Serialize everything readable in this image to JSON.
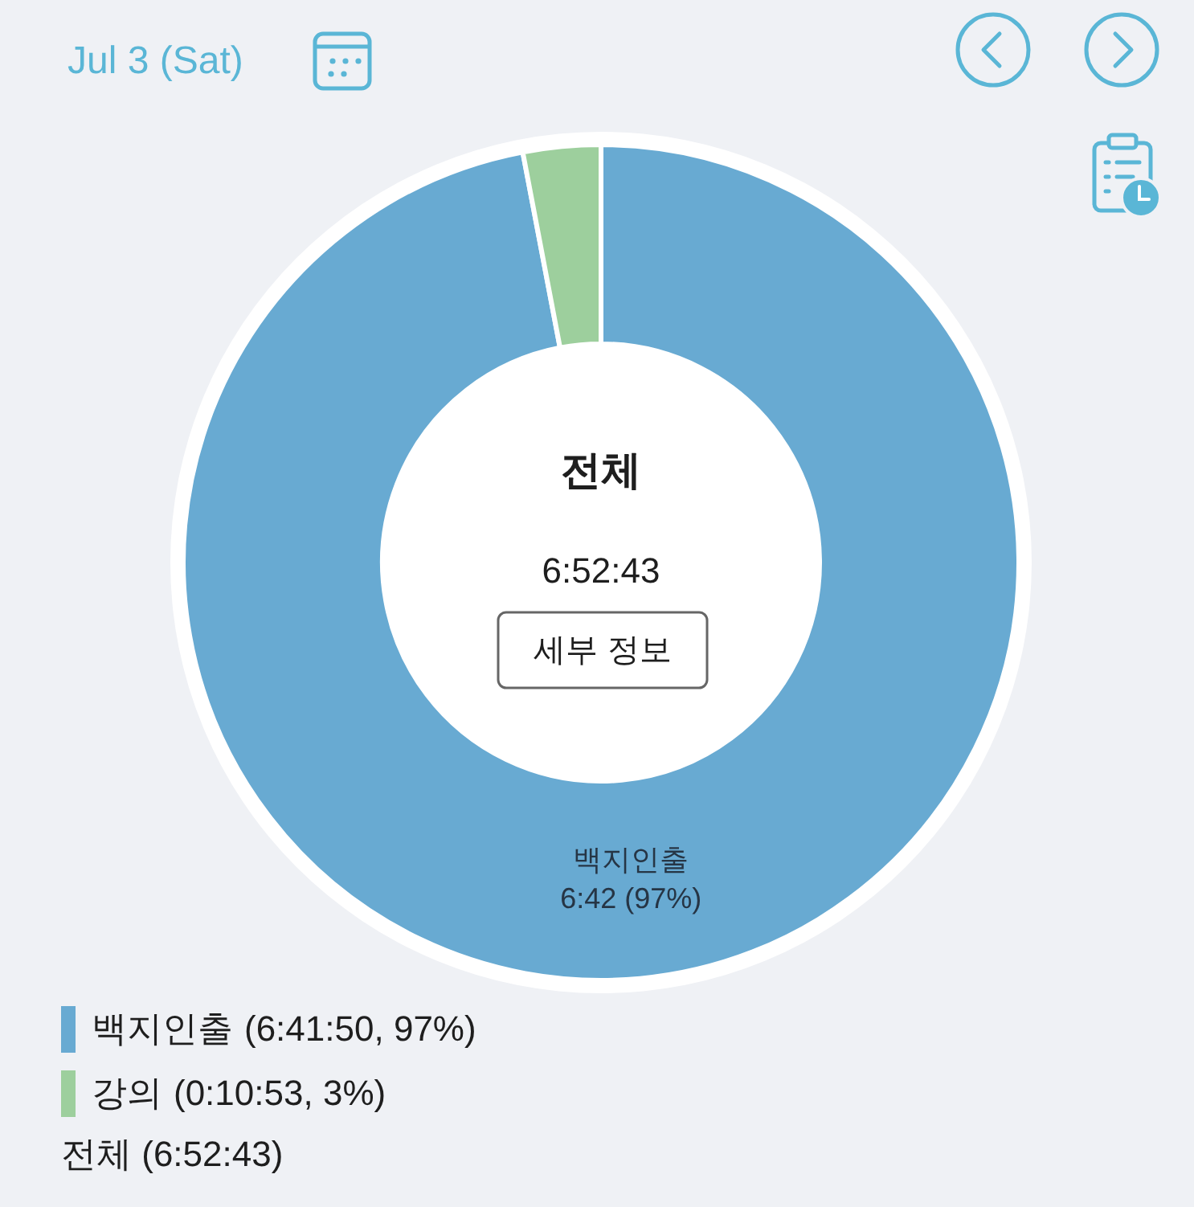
{
  "chart_data": {
    "type": "donut",
    "title": "Jul 3 (Sat)",
    "categories": [
      "백지인출",
      "강의"
    ],
    "values": [
      97,
      3
    ],
    "colors": [
      "#68aad2",
      "#9dcf9d"
    ],
    "value_labels": [
      "6:42 (97%)",
      null
    ],
    "legend": "bottom left",
    "annotations": [
      "(6:41:50, 97%)",
      "(0:10:53, 3%)",
      "전체 (6:52:43)",
      "전체",
      "6:52:43",
      "세부 정보"
    ]
  }
}
